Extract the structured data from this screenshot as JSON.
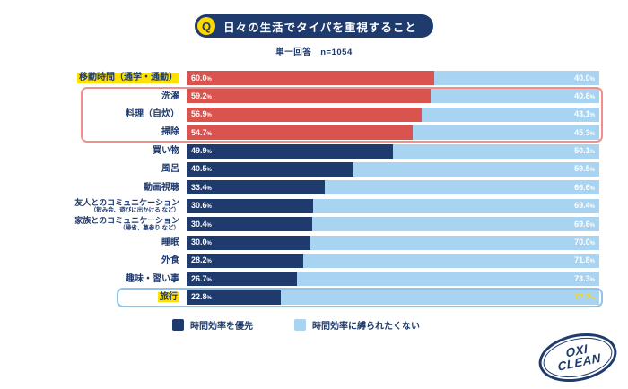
{
  "header": {
    "q_badge": "Q",
    "title": "日々の生活でタイパを重視すること",
    "subtitle": "単一回答　n=1054"
  },
  "chart_data": {
    "type": "bar",
    "orientation": "horizontal",
    "stacked": true,
    "title": "日々の生活でタイパを重視すること",
    "note": "単一回答",
    "n": 1054,
    "unit": "%",
    "xlim": [
      0,
      100
    ],
    "legend_position": "bottom",
    "categories": [
      "移動時間（通学・通勤）",
      "洗濯",
      "料理（自炊）",
      "掃除",
      "買い物",
      "風呂",
      "動画視聴",
      "友人とのコミュニケーション（飲み会、遊びに出かける など）",
      "家族とのコミュニケーション（帰省、墓参り など）",
      "睡眠",
      "外食",
      "趣味・習い事",
      "旅行"
    ],
    "series": [
      {
        "name": "時間効率を優先",
        "values": [
          60.0,
          59.2,
          56.9,
          54.7,
          49.9,
          40.5,
          33.4,
          30.6,
          30.4,
          30.0,
          28.2,
          26.7,
          22.8
        ]
      },
      {
        "name": "時間効率に縛られたくない",
        "values": [
          40.0,
          40.8,
          43.1,
          45.3,
          50.1,
          59.5,
          66.6,
          69.4,
          69.6,
          70.0,
          71.8,
          73.3,
          77.2
        ]
      }
    ]
  },
  "rows": [
    {
      "label": "移動時間（通学・通勤）",
      "seg": "red",
      "hl": true
    },
    {
      "label": "洗濯",
      "seg": "red"
    },
    {
      "label": "料理（自炊）",
      "seg": "red"
    },
    {
      "label": "掃除",
      "seg": "red"
    },
    {
      "label": "買い物"
    },
    {
      "label": "風呂"
    },
    {
      "label": "動画視聴"
    },
    {
      "label": "友人とのコミュニケーション",
      "sub": "（飲み会、遊びに出かける など）"
    },
    {
      "label": "家族とのコミュニケーション",
      "sub": "（帰省、墓参り など）"
    },
    {
      "label": "睡眠"
    },
    {
      "label": "外食"
    },
    {
      "label": "趣味・習い事"
    },
    {
      "label": "旅行",
      "hl": true,
      "right_gold": true
    }
  ],
  "legend": {
    "items": [
      {
        "label": "時間効率を優先",
        "color": "#1f3a6d"
      },
      {
        "label": "時間効率に縛られたくない",
        "color": "#a9d4f1"
      }
    ]
  },
  "colors": {
    "navy": "#1f3a6d",
    "light_blue": "#a9d4f1",
    "red": "#d9534f",
    "yellow": "#ffe100",
    "gold": "#ffd800",
    "box_red": "#f0908c",
    "box_blue": "#8fc3ea"
  },
  "logo": {
    "line1": "OXI",
    "line2": "CLEAN"
  }
}
